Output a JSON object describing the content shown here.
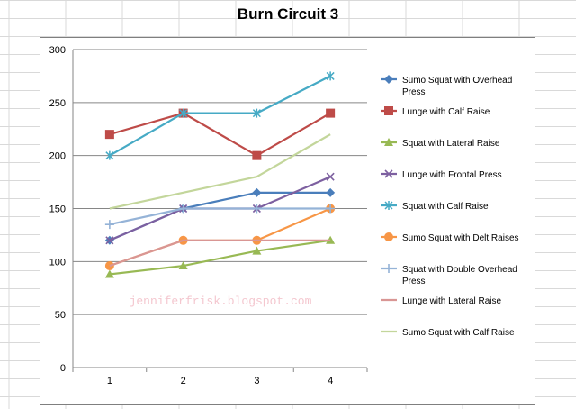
{
  "sheet": {
    "grid_color": "#d9d9d9",
    "background": "#ffffff"
  },
  "watermark": "jenniferfrisk.blogspot.com",
  "chart_data": {
    "type": "line",
    "title": "Burn Circuit 3",
    "xlabel": "",
    "ylabel": "",
    "categories": [
      "1",
      "2",
      "3",
      "4"
    ],
    "ylim": [
      0,
      300
    ],
    "yticks": [
      0,
      50,
      100,
      150,
      200,
      250,
      300
    ],
    "grid": true,
    "legend_position": "right",
    "series": [
      {
        "name": "Sumo Squat with Overhead Press",
        "values": [
          120,
          150,
          165,
          165
        ],
        "color": "#4a7ebb",
        "marker": "diamond"
      },
      {
        "name": "Lunge with Calf Raise",
        "values": [
          220,
          240,
          200,
          240
        ],
        "color": "#be4b48",
        "marker": "square"
      },
      {
        "name": "Squat with Lateral Raise",
        "values": [
          88,
          96,
          110,
          120
        ],
        "color": "#98b954",
        "marker": "triangle"
      },
      {
        "name": "Lunge with Frontal Press",
        "values": [
          120,
          150,
          150,
          180
        ],
        "color": "#7d60a0",
        "marker": "x"
      },
      {
        "name": "Squat with Calf Raise",
        "values": [
          200,
          240,
          240,
          275
        ],
        "color": "#46aac5",
        "marker": "star"
      },
      {
        "name": "Sumo Squat with Delt Raises",
        "values": [
          96,
          120,
          120,
          150
        ],
        "color": "#f79646",
        "marker": "circle"
      },
      {
        "name": "Squat with Double Overhead Press",
        "values": [
          135,
          150,
          150,
          150
        ],
        "color": "#95b3d7",
        "marker": "plus"
      },
      {
        "name": "Lunge with Lateral Raise",
        "values": [
          96,
          120,
          120,
          120
        ],
        "color": "#d99694",
        "marker": "none"
      },
      {
        "name": "Sumo Squat with Calf Raise",
        "values": [
          150,
          165,
          180,
          220
        ],
        "color": "#c3d69b",
        "marker": "none"
      }
    ]
  }
}
